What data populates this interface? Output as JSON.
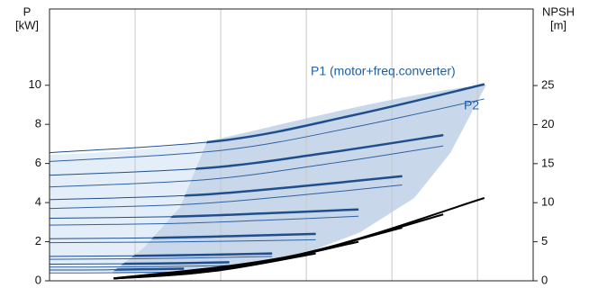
{
  "chart_data": {
    "type": "line",
    "y_label": [
      "P",
      "[kW]"
    ],
    "y2_label": [
      "NPSH",
      "[m]"
    ],
    "annotations": [
      "P1 (motor+freq.converter)",
      "P2"
    ],
    "xlim": [
      0,
      5.65
    ],
    "xticks": [
      1,
      2,
      3,
      4,
      5
    ],
    "ylim": [
      0,
      13.9
    ],
    "yticks": [
      0,
      2,
      4,
      6,
      8,
      10
    ],
    "y2lim": [
      0,
      34.8
    ],
    "y2ticks": [
      0,
      5,
      10,
      15,
      20,
      25
    ],
    "grid": true,
    "series": [
      {
        "color": "#1f4e8c",
        "emphasis": true,
        "x": [
          0,
          2.03,
          3.56,
          5.08
        ],
        "values": [
          6.55,
          7.18,
          8.48,
          10.05
        ]
      },
      {
        "color": "#2f62a4",
        "emphasis": false,
        "x": [
          0,
          2.03,
          3.56,
          5.08
        ],
        "values": [
          6.1,
          6.68,
          7.86,
          9.3
        ]
      },
      {
        "color": "#1f4e8c",
        "emphasis": true,
        "x": [
          0,
          1.84,
          3.22,
          4.6
        ],
        "values": [
          5.4,
          5.77,
          6.53,
          7.45
        ]
      },
      {
        "color": "#2f62a4",
        "emphasis": false,
        "x": [
          0,
          1.84,
          3.22,
          4.6
        ],
        "values": [
          4.8,
          5.18,
          5.96,
          6.9
        ]
      },
      {
        "color": "#1f4e8c",
        "emphasis": true,
        "x": [
          0,
          1.65,
          2.88,
          4.12
        ],
        "values": [
          4.15,
          4.37,
          4.81,
          5.35
        ]
      },
      {
        "color": "#2f62a4",
        "emphasis": false,
        "x": [
          0,
          1.65,
          2.88,
          4.12
        ],
        "values": [
          3.7,
          3.92,
          4.36,
          4.9
        ]
      },
      {
        "color": "#1f4e8c",
        "emphasis": true,
        "x": [
          0,
          1.44,
          2.53,
          3.61
        ],
        "values": [
          3.2,
          3.28,
          3.45,
          3.65
        ]
      },
      {
        "color": "#2f62a4",
        "emphasis": false,
        "x": [
          0,
          1.44,
          2.53,
          3.61
        ],
        "values": [
          2.85,
          2.93,
          3.1,
          3.3
        ]
      },
      {
        "color": "#1f4e8c",
        "emphasis": true,
        "x": [
          0,
          1.24,
          2.18,
          3.11
        ],
        "values": [
          2.15,
          2.2,
          2.29,
          2.4
        ]
      },
      {
        "color": "#2f62a4",
        "emphasis": false,
        "x": [
          0,
          1.24,
          2.18,
          3.11
        ],
        "values": [
          1.95,
          1.98,
          2.03,
          2.1
        ]
      },
      {
        "color": "#1f4e8c",
        "emphasis": true,
        "x": [
          0,
          1.04,
          1.82,
          2.6
        ],
        "values": [
          1.25,
          1.28,
          1.33,
          1.4
        ]
      },
      {
        "color": "#2f62a4",
        "emphasis": false,
        "x": [
          0,
          1.04,
          1.82,
          2.6
        ],
        "values": [
          1.1,
          1.13,
          1.18,
          1.25
        ]
      },
      {
        "color": "#1f4e8c",
        "emphasis": true,
        "x": [
          0,
          0.84,
          1.47,
          2.1
        ],
        "values": [
          0.85,
          0.87,
          0.9,
          0.95
        ]
      },
      {
        "color": "#2f62a4",
        "emphasis": false,
        "x": [
          0,
          0.84,
          1.47,
          2.1
        ],
        "values": [
          0.7,
          0.71,
          0.74,
          0.78
        ]
      },
      {
        "color": "#1f4e8c",
        "emphasis": true,
        "x": [
          0,
          0.63,
          1.1,
          1.57
        ],
        "values": [
          0.55,
          0.56,
          0.59,
          0.62
        ]
      },
      {
        "color": "#2f62a4",
        "emphasis": false,
        "x": [
          0,
          0.63,
          1.1,
          1.57
        ],
        "values": [
          0.4,
          0.41,
          0.43,
          0.45
        ]
      },
      {
        "color": "#000000",
        "emphasis": true,
        "axis": "y2",
        "x": [
          0.75,
          2.92,
          5.08
        ],
        "values": [
          0.3,
          3.39,
          10.6
        ]
      },
      {
        "color": "#000000",
        "emphasis": true,
        "axis": "y2",
        "x": [
          0.75,
          2.68,
          4.6
        ],
        "values": [
          0.3,
          2.76,
          8.5
        ]
      },
      {
        "color": "#000000",
        "emphasis": true,
        "axis": "y2",
        "x": [
          0.75,
          2.44,
          4.12
        ],
        "values": [
          0.3,
          2.25,
          6.8
        ]
      },
      {
        "color": "#000000",
        "emphasis": true,
        "axis": "y2",
        "x": [
          0.75,
          2.18,
          3.61
        ],
        "values": [
          0.3,
          1.71,
          5.0
        ]
      },
      {
        "color": "#000000",
        "emphasis": true,
        "axis": "y2",
        "x": [
          0.75,
          1.93,
          3.11
        ],
        "values": [
          0.3,
          1.26,
          3.5
        ]
      },
      {
        "color": "#000000",
        "emphasis": true,
        "axis": "y2",
        "x": [
          0.75,
          1.68,
          2.6
        ],
        "values": [
          0.3,
          0.96,
          2.5
        ]
      }
    ]
  }
}
